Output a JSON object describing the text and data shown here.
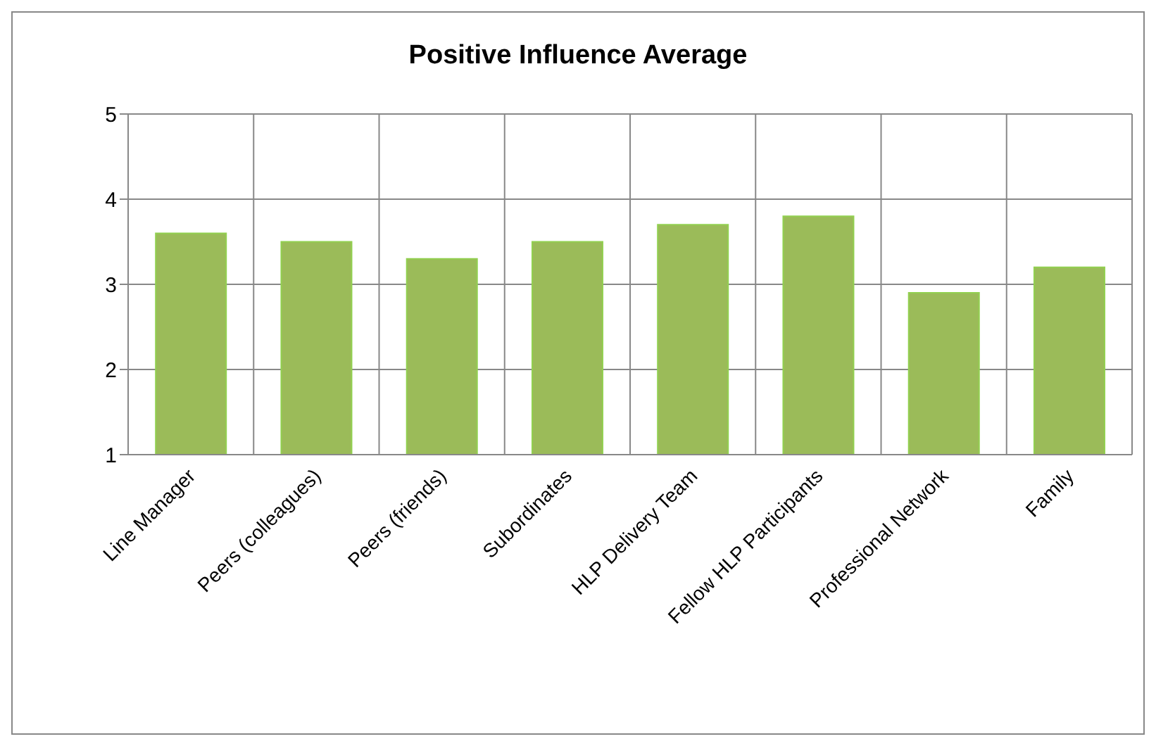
{
  "chart_data": {
    "type": "bar",
    "title": "Positive Influence Average",
    "categories": [
      "Line Manager",
      "Peers (colleagues)",
      "Peers (friends)",
      "Subordinates",
      "HLP Delivery Team",
      "Fellow HLP Participants",
      "Professional Network",
      "Family"
    ],
    "values": [
      3.6,
      3.5,
      3.3,
      3.5,
      3.7,
      3.8,
      2.9,
      3.2
    ],
    "color": "#9bbb59",
    "ylim": [
      1,
      5
    ],
    "yticks": [
      1,
      2,
      3,
      4,
      5
    ],
    "grid": true
  }
}
